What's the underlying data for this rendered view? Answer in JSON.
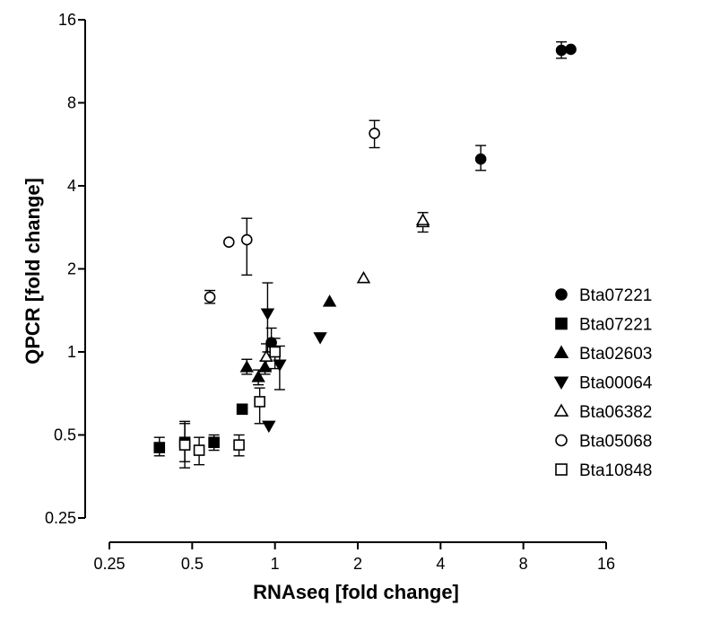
{
  "chart_data": {
    "type": "scatter",
    "xlabel": "RNAseq [fold change]",
    "ylabel": "QPCR [fold change]",
    "xscale": "log2",
    "yscale": "log2",
    "xlim": [
      0.25,
      16
    ],
    "ylim": [
      0.25,
      16
    ],
    "x_ticks": [
      0.25,
      0.5,
      1,
      2,
      4,
      8,
      16
    ],
    "x_tick_labels": [
      "0.25",
      "0.5",
      "1",
      "2",
      "4",
      "8",
      "16"
    ],
    "y_ticks": [
      0.25,
      0.5,
      1,
      2,
      4,
      8,
      16
    ],
    "y_tick_labels": [
      "0.25",
      "0.5",
      "1",
      "2",
      "4",
      "8",
      "16"
    ],
    "grid": false,
    "legend_position": "right",
    "series": [
      {
        "name": "Bta07221",
        "marker": "circle-filled",
        "points": [
          {
            "x": 0.97,
            "y": 1.08,
            "err": [
              1.0,
              1.22
            ]
          },
          {
            "x": 5.6,
            "y": 5.0,
            "err": [
              4.55,
              5.6
            ]
          },
          {
            "x": 11.0,
            "y": 12.4,
            "err": [
              11.6,
              13.3
            ]
          },
          {
            "x": 11.9,
            "y": 12.5
          }
        ]
      },
      {
        "name": "Bta07221",
        "marker": "square-filled",
        "points": [
          {
            "x": 0.38,
            "y": 0.45,
            "err": [
              0.42,
              0.49
            ]
          },
          {
            "x": 0.47,
            "y": 0.47,
            "err": [
              0.4,
              0.55
            ]
          },
          {
            "x": 0.6,
            "y": 0.47,
            "err": [
              0.44,
              0.5
            ]
          },
          {
            "x": 0.76,
            "y": 0.62
          }
        ]
      },
      {
        "name": "Bta02603",
        "marker": "triangle-up-filled",
        "points": [
          {
            "x": 0.79,
            "y": 0.88,
            "err": [
              0.83,
              0.94
            ]
          },
          {
            "x": 0.87,
            "y": 0.81,
            "err": [
              0.76,
              0.86
            ]
          },
          {
            "x": 0.92,
            "y": 0.88,
            "err": [
              0.83,
              0.93
            ]
          },
          {
            "x": 1.58,
            "y": 1.52
          }
        ]
      },
      {
        "name": "Bta00064",
        "marker": "triangle-down-filled",
        "points": [
          {
            "x": 0.94,
            "y": 1.38,
            "err": [
              1.0,
              1.78
            ]
          },
          {
            "x": 1.04,
            "y": 0.9,
            "err": [
              0.73,
              1.05
            ]
          },
          {
            "x": 0.95,
            "y": 0.54
          },
          {
            "x": 1.46,
            "y": 1.13
          }
        ]
      },
      {
        "name": "Bta06382",
        "marker": "triangle-up-open",
        "points": [
          {
            "x": 0.93,
            "y": 0.96,
            "err": [
              0.86,
              1.07
            ]
          },
          {
            "x": 2.1,
            "y": 1.85
          },
          {
            "x": 3.45,
            "y": 2.95,
            "err": [
              2.72,
              3.2
            ]
          },
          {
            "x": 3.45,
            "y": 3.0
          }
        ]
      },
      {
        "name": "Bta05068",
        "marker": "circle-open",
        "points": [
          {
            "x": 0.58,
            "y": 1.58,
            "err": [
              1.5,
              1.67
            ]
          },
          {
            "x": 0.68,
            "y": 2.5
          },
          {
            "x": 0.79,
            "y": 2.55,
            "err": [
              1.9,
              3.05
            ]
          },
          {
            "x": 2.3,
            "y": 6.2,
            "err": [
              5.5,
              6.9
            ]
          }
        ]
      },
      {
        "name": "Bta10848",
        "marker": "square-open",
        "points": [
          {
            "x": 0.47,
            "y": 0.46,
            "err": [
              0.38,
              0.56
            ]
          },
          {
            "x": 0.53,
            "y": 0.44,
            "err": [
              0.39,
              0.49
            ]
          },
          {
            "x": 0.74,
            "y": 0.46,
            "err": [
              0.42,
              0.5
            ]
          },
          {
            "x": 0.88,
            "y": 0.66,
            "err": [
              0.55,
              0.74
            ]
          },
          {
            "x": 1.0,
            "y": 1.0,
            "err": [
              0.87,
              1.12
            ]
          }
        ]
      }
    ]
  }
}
